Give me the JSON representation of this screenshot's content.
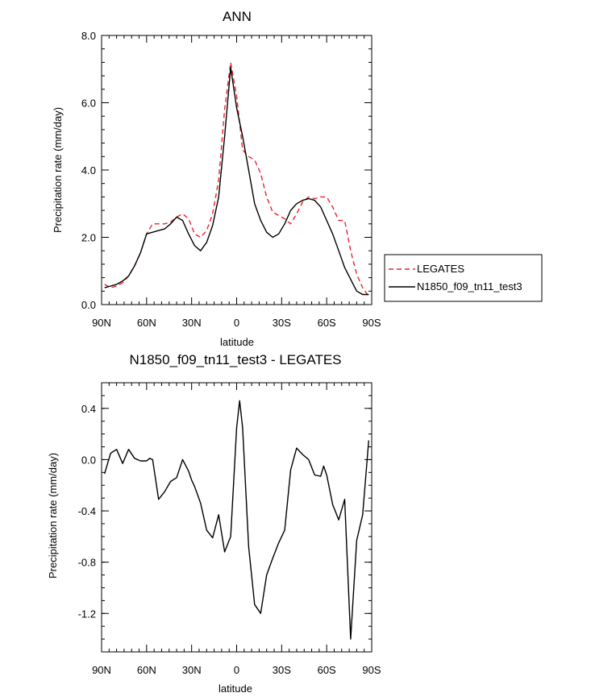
{
  "colors": {
    "legates": "#e8242a",
    "model": "#000000"
  },
  "chart_data": [
    {
      "type": "line",
      "title": "ANN",
      "xlabel": "latitude",
      "ylabel": "Precipitation rate (mm/day)",
      "xlim": [
        90,
        -90
      ],
      "ylim": [
        0,
        8
      ],
      "xtick_values": [
        90,
        60,
        30,
        0,
        -30,
        -60,
        -90
      ],
      "xtick_labels": [
        "90N",
        "60N",
        "30N",
        "0",
        "30S",
        "60S",
        "90S"
      ],
      "ytick_values": [
        0,
        2,
        4,
        6,
        8
      ],
      "ytick_labels": [
        "0.0",
        "2.0",
        "4.0",
        "6.0",
        "8.0"
      ],
      "legend_position": "right",
      "x": [
        88,
        84,
        80,
        76,
        72,
        68,
        64,
        60,
        56,
        52,
        48,
        44,
        40,
        36,
        32,
        28,
        24,
        20,
        16,
        12,
        8,
        4,
        0,
        -4,
        -8,
        -12,
        -16,
        -20,
        -24,
        -28,
        -32,
        -36,
        -40,
        -44,
        -48,
        -52,
        -56,
        -60,
        -64,
        -68,
        -72,
        -76,
        -80,
        -84,
        -88
      ],
      "series": [
        {
          "name": "LEGATES",
          "style": "dashed",
          "color": "#e8242a",
          "values": [
            0.6,
            0.5,
            0.55,
            0.65,
            0.85,
            1.15,
            1.55,
            2.1,
            2.4,
            2.4,
            2.4,
            2.45,
            2.6,
            2.7,
            2.55,
            2.1,
            2.0,
            2.2,
            2.7,
            3.7,
            5.8,
            7.2,
            6.2,
            4.6,
            4.4,
            4.3,
            3.9,
            3.2,
            2.75,
            2.65,
            2.55,
            2.4,
            2.7,
            3.05,
            3.2,
            3.15,
            3.2,
            3.2,
            2.9,
            2.5,
            2.5,
            1.6,
            0.9,
            0.5,
            0.25
          ]
        },
        {
          "name": "N1850_f09_tn11_test3",
          "style": "solid",
          "color": "#000000",
          "values": [
            0.5,
            0.55,
            0.6,
            0.7,
            0.85,
            1.15,
            1.55,
            2.1,
            2.15,
            2.2,
            2.25,
            2.4,
            2.6,
            2.5,
            2.1,
            1.75,
            1.6,
            1.85,
            2.35,
            3.2,
            5.0,
            7.05,
            5.85,
            5.0,
            4.0,
            3.0,
            2.5,
            2.15,
            2.0,
            2.1,
            2.4,
            2.8,
            3.0,
            3.1,
            3.15,
            3.1,
            2.9,
            2.5,
            2.1,
            1.6,
            1.1,
            0.75,
            0.4,
            0.3,
            0.3
          ]
        }
      ]
    },
    {
      "type": "line",
      "title": "N1850_f09_tn11_test3 - LEGATES",
      "xlabel": "latitude",
      "ylabel": "Precipitation rate (mm/day)",
      "xlim": [
        90,
        -90
      ],
      "ylim": [
        -1.5,
        0.6
      ],
      "xtick_values": [
        90,
        60,
        30,
        0,
        -30,
        -60,
        -90
      ],
      "xtick_labels": [
        "90N",
        "60N",
        "30N",
        "0",
        "30S",
        "60S",
        "90S"
      ],
      "ytick_values": [
        0.4,
        0.0,
        -0.4,
        -0.8,
        -1.2
      ],
      "ytick_labels": [
        "0.4",
        "0.0",
        "-0.4",
        "-0.8",
        "-1.2"
      ],
      "x": [
        88,
        84,
        80,
        76,
        72,
        68,
        64,
        60,
        58,
        56,
        52,
        48,
        44,
        40,
        36,
        32,
        30,
        28,
        24,
        20,
        16,
        12,
        8,
        4,
        0,
        -2,
        -4,
        -8,
        -12,
        -16,
        -20,
        -24,
        -28,
        -32,
        -36,
        -40,
        -44,
        -48,
        -52,
        -56,
        -58,
        -60,
        -64,
        -68,
        -72,
        -76,
        -80,
        -84,
        -88
      ],
      "series": [
        {
          "name": "",
          "style": "solid",
          "color": "#000000",
          "values": [
            -0.11,
            0.05,
            0.08,
            -0.03,
            0.08,
            0.01,
            -0.01,
            -0.01,
            0.01,
            0.0,
            -0.31,
            -0.25,
            -0.17,
            -0.14,
            0.0,
            -0.09,
            -0.16,
            -0.21,
            -0.34,
            -0.55,
            -0.61,
            -0.43,
            -0.72,
            -0.6,
            0.25,
            0.46,
            0.25,
            -0.68,
            -1.13,
            -1.2,
            -0.9,
            -0.77,
            -0.65,
            -0.55,
            -0.08,
            0.09,
            0.04,
            0.0,
            -0.12,
            -0.13,
            -0.05,
            -0.12,
            -0.35,
            -0.47,
            -0.31,
            -1.4,
            -0.63,
            -0.43,
            0.15
          ]
        }
      ]
    }
  ]
}
